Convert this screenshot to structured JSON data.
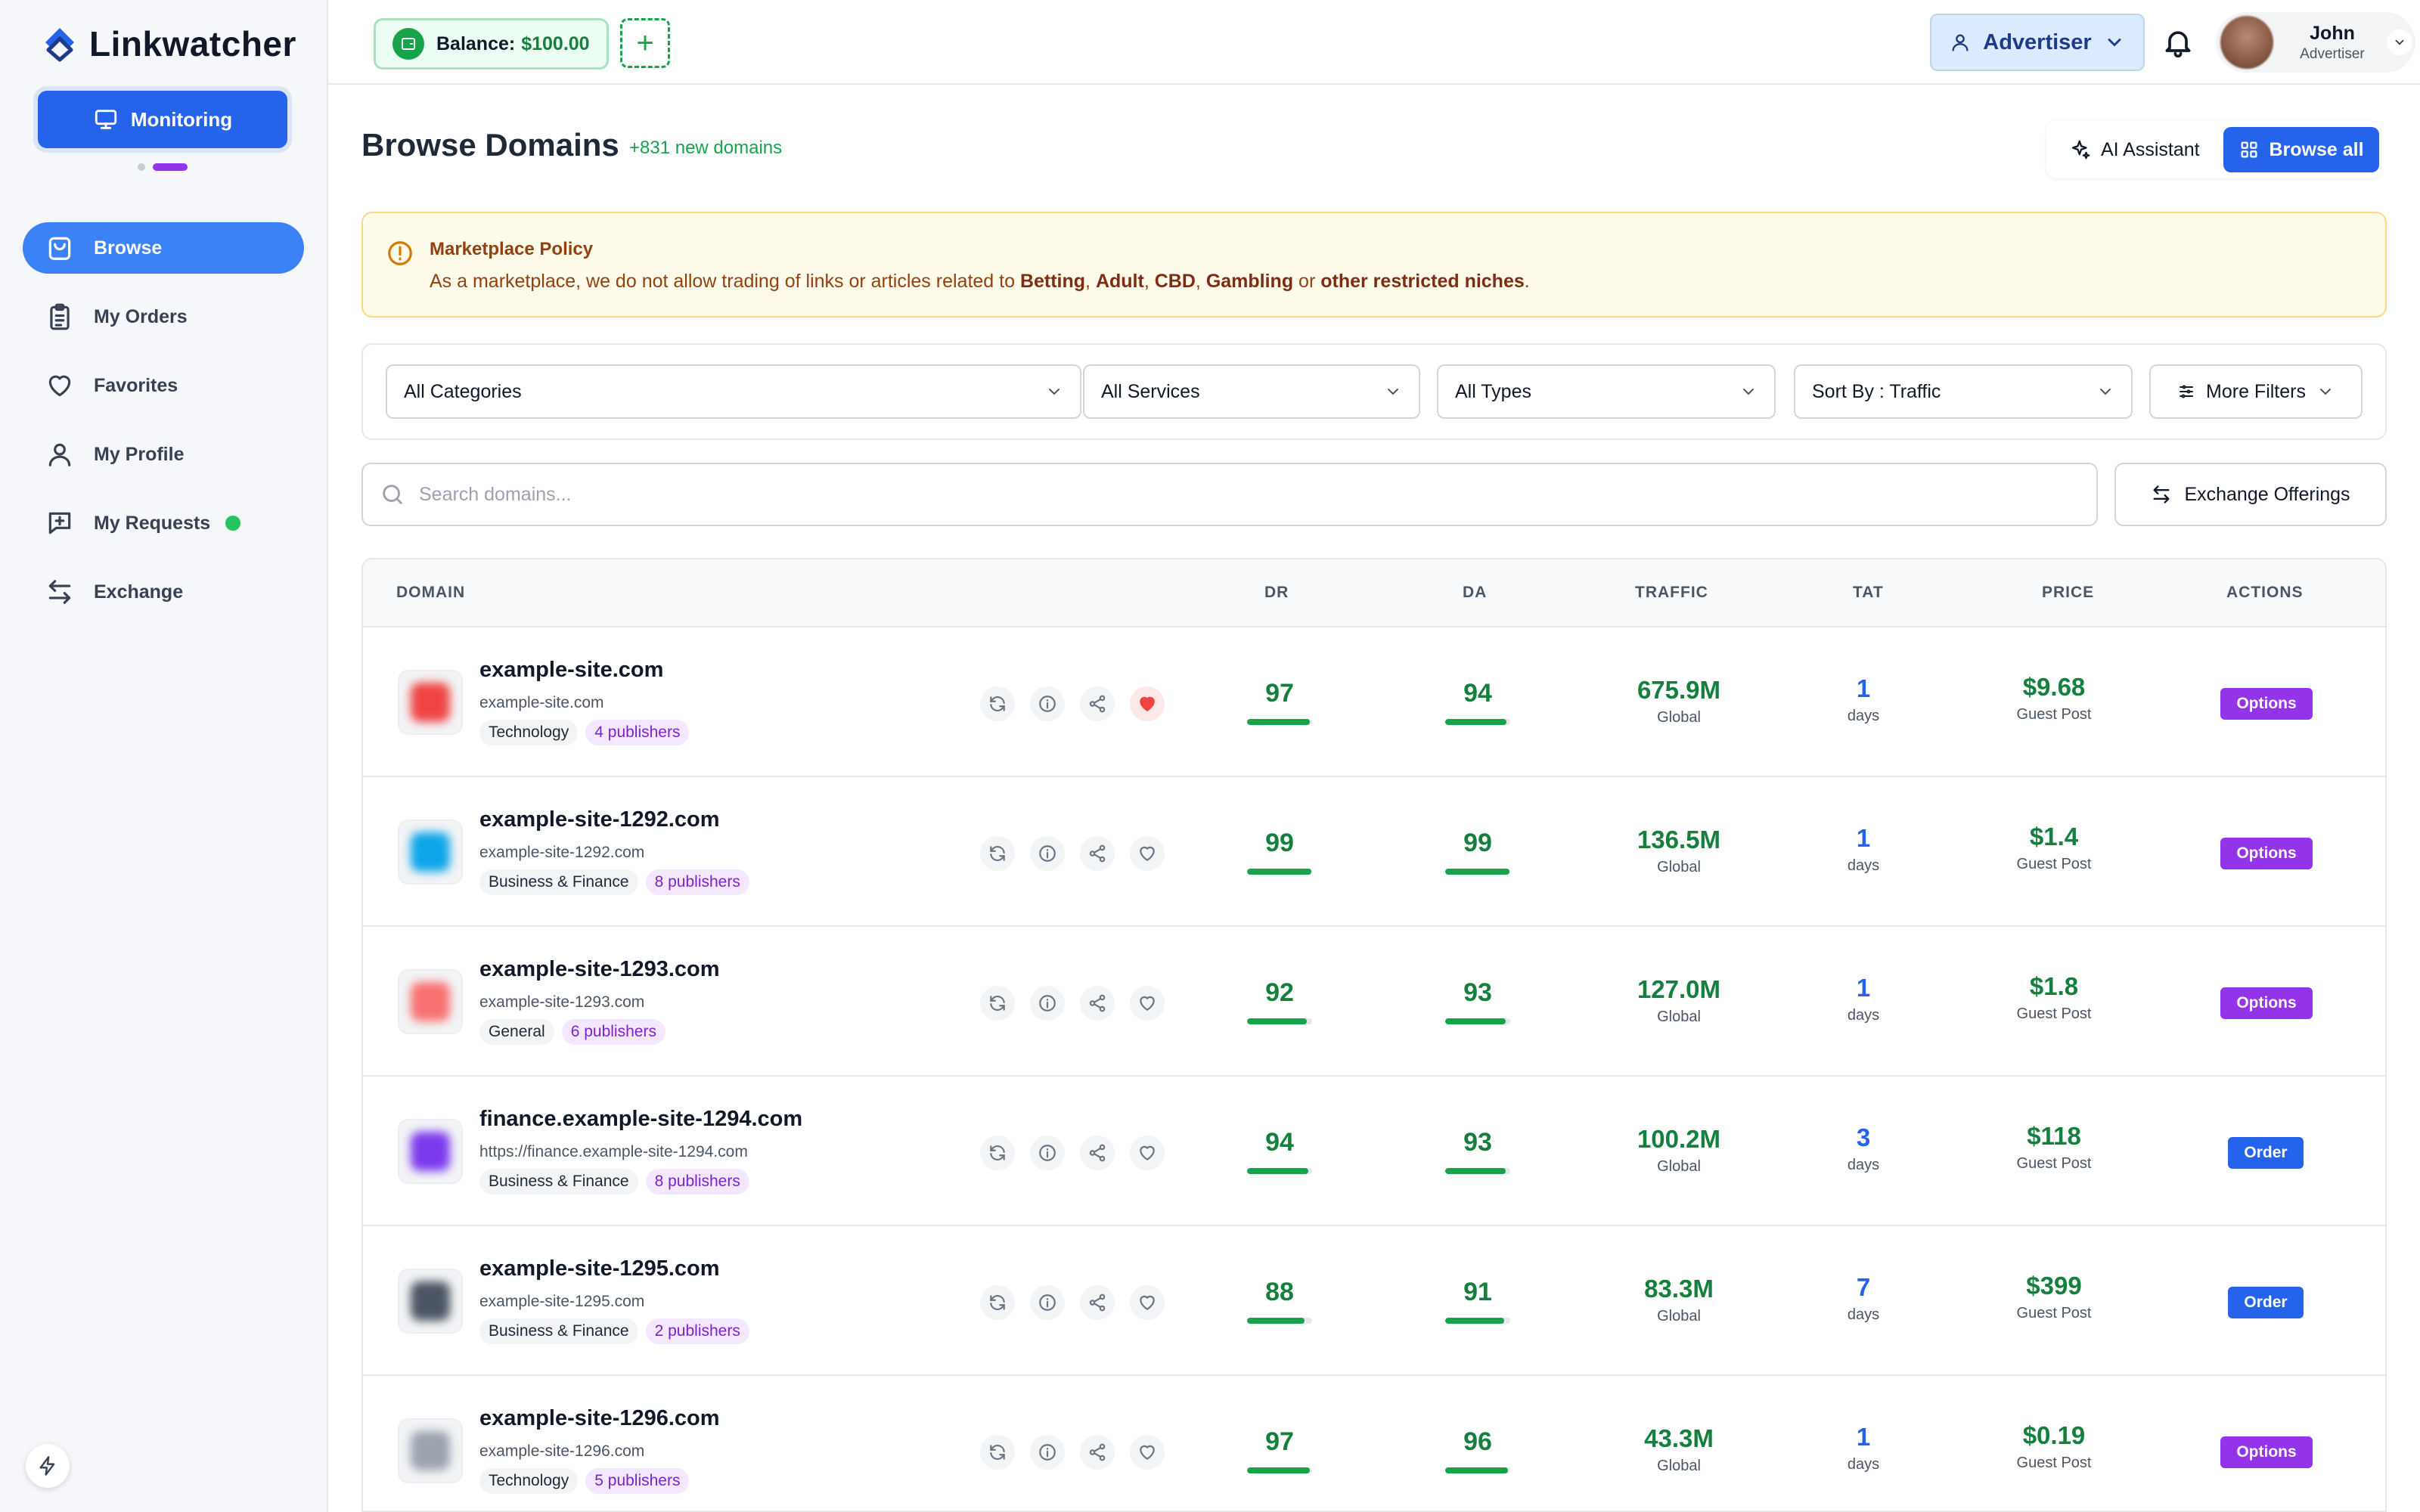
{
  "app": {
    "name": "Linkwatcher"
  },
  "sidebar": {
    "monitoring_label": "Monitoring",
    "items": [
      {
        "label": "Browse",
        "icon": "shopping-bag-icon",
        "active": true
      },
      {
        "label": "My Orders",
        "icon": "clipboard-icon",
        "active": false
      },
      {
        "label": "Favorites",
        "icon": "heart-icon",
        "active": false
      },
      {
        "label": "My Profile",
        "icon": "user-icon",
        "active": false
      },
      {
        "label": "My Requests",
        "icon": "message-plus-icon",
        "active": false,
        "status": "online"
      },
      {
        "label": "Exchange",
        "icon": "exchange-arrows-icon",
        "active": false
      }
    ]
  },
  "topbar": {
    "balance_label": "Balance:",
    "balance_amount": "$100.00",
    "add_balance": "+",
    "role": "Advertiser",
    "user": {
      "name": "John",
      "role": "Advertiser"
    }
  },
  "header": {
    "title": "Browse Domains",
    "new_domains": "+831 new domains",
    "ai_assistant": "AI Assistant",
    "browse_all": "Browse all"
  },
  "policy": {
    "title": "Marketplace Policy",
    "text_prefix": "As a marketplace, we do not allow trading of links or articles related to ",
    "term1": "Betting",
    "sep1": ", ",
    "term2": "Adult",
    "sep2": ", ",
    "term3": "CBD",
    "sep3": ", ",
    "term4": "Gambling",
    "sep4": " or ",
    "term5": "other restricted niches",
    "suffix": "."
  },
  "filters": {
    "categories": "All Categories",
    "services": "All Services",
    "types": "All Types",
    "sort": "Sort By : Traffic",
    "more": "More Filters"
  },
  "search": {
    "placeholder": "Search domains..."
  },
  "exchange_offerings": "Exchange Offerings",
  "table": {
    "headers": {
      "domain": "DOMAIN",
      "dr": "DR",
      "da": "DA",
      "traffic": "TRAFFIC",
      "tat": "TAT",
      "price": "PRICE",
      "actions": "ACTIONS"
    },
    "rows": [
      {
        "name": "example-site.com",
        "url": "example-site.com",
        "category": "Technology",
        "publishers": "4 publishers",
        "dr": "97",
        "dr_pct": 97,
        "da": "94",
        "da_pct": 94,
        "traffic": "675.9M",
        "region": "Global",
        "tat": "1",
        "tat_unit": "days",
        "price": "$9.68",
        "price_type": "Guest Post",
        "action": "Options",
        "favorited": true,
        "favicon_color": "#ef4444"
      },
      {
        "name": "example-site-1292.com",
        "url": "example-site-1292.com",
        "category": "Business & Finance",
        "publishers": "8 publishers",
        "dr": "99",
        "dr_pct": 99,
        "da": "99",
        "da_pct": 99,
        "traffic": "136.5M",
        "region": "Global",
        "tat": "1",
        "tat_unit": "days",
        "price": "$1.4",
        "price_type": "Guest Post",
        "action": "Options",
        "favorited": false,
        "favicon_color": "#0ea5e9"
      },
      {
        "name": "example-site-1293.com",
        "url": "example-site-1293.com",
        "category": "General",
        "publishers": "6 publishers",
        "dr": "92",
        "dr_pct": 92,
        "da": "93",
        "da_pct": 93,
        "traffic": "127.0M",
        "region": "Global",
        "tat": "1",
        "tat_unit": "days",
        "price": "$1.8",
        "price_type": "Guest Post",
        "action": "Options",
        "favorited": false,
        "favicon_color": "#f87171"
      },
      {
        "name": "finance.example-site-1294.com",
        "url": "https://finance.example-site-1294.com",
        "category": "Business & Finance",
        "publishers": "8 publishers",
        "dr": "94",
        "dr_pct": 94,
        "da": "93",
        "da_pct": 93,
        "traffic": "100.2M",
        "region": "Global",
        "tat": "3",
        "tat_unit": "days",
        "price": "$118",
        "price_type": "Guest Post",
        "action": "Order",
        "favorited": false,
        "favicon_color": "#7c3aed"
      },
      {
        "name": "example-site-1295.com",
        "url": "example-site-1295.com",
        "category": "Business & Finance",
        "publishers": "2 publishers",
        "dr": "88",
        "dr_pct": 88,
        "da": "91",
        "da_pct": 91,
        "traffic": "83.3M",
        "region": "Global",
        "tat": "7",
        "tat_unit": "days",
        "price": "$399",
        "price_type": "Guest Post",
        "action": "Order",
        "favorited": false,
        "favicon_color": "#4b5563"
      },
      {
        "name": "example-site-1296.com",
        "url": "example-site-1296.com",
        "category": "Technology",
        "publishers": "5 publishers",
        "dr": "97",
        "dr_pct": 97,
        "da": "96",
        "da_pct": 96,
        "traffic": "43.3M",
        "region": "Global",
        "tat": "1",
        "tat_unit": "days",
        "price": "$0.19",
        "price_type": "Guest Post",
        "action": "Options",
        "favorited": false,
        "favicon_color": "#9ca3af"
      }
    ]
  },
  "colors": {
    "primary": "#2563eb",
    "success": "#16a34a",
    "options": "#9333ea",
    "warning_bg": "#fffbeb"
  }
}
